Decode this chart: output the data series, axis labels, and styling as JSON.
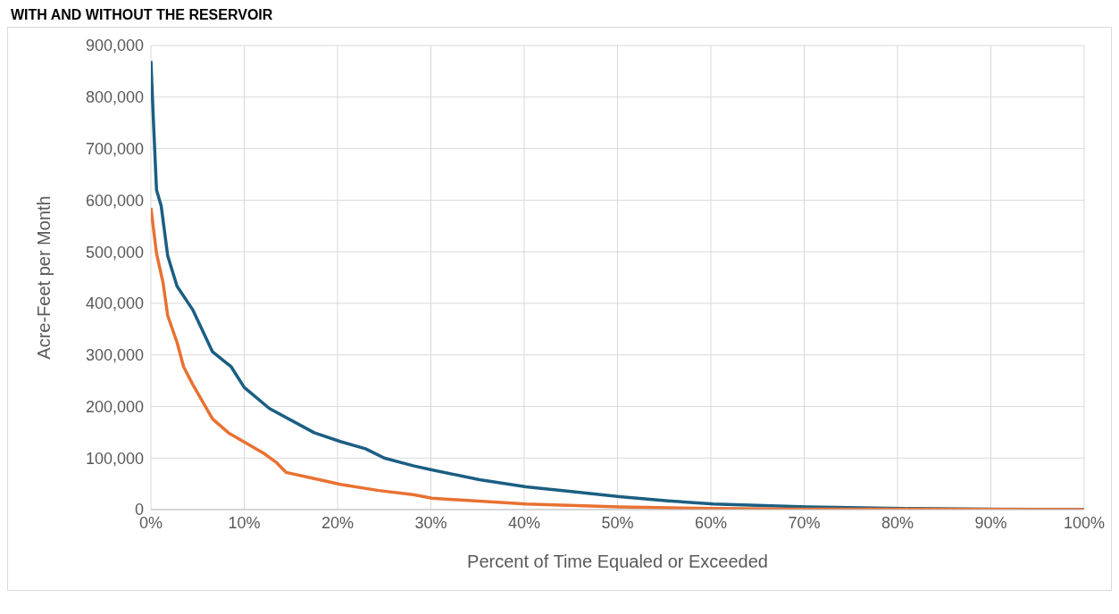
{
  "chart_data": {
    "type": "line",
    "title": "WITH AND WITHOUT THE RESERVOIR",
    "xlabel": "Percent of Time Equaled or Exceeded",
    "ylabel": "Acre-Feet per Month",
    "xlim": [
      0,
      100
    ],
    "xticks": [
      {
        "value": 0,
        "label": "0%"
      },
      {
        "value": 10,
        "label": "10%"
      },
      {
        "value": 20,
        "label": "20%"
      },
      {
        "value": 30,
        "label": "30%"
      },
      {
        "value": 40,
        "label": "40%"
      },
      {
        "value": 50,
        "label": "50%"
      },
      {
        "value": 60,
        "label": "60%"
      },
      {
        "value": 70,
        "label": "70%"
      },
      {
        "value": 80,
        "label": "80%"
      },
      {
        "value": 90,
        "label": "90%"
      },
      {
        "value": 100,
        "label": "100%"
      }
    ],
    "ylim": [
      0,
      900000
    ],
    "yticks": [
      0,
      {
        "value": 100000,
        "label": "100,000"
      },
      {
        "value": 200000,
        "label": "200,000"
      },
      {
        "value": 300000,
        "label": "300,000"
      },
      {
        "value": 400000,
        "label": "400,000"
      },
      {
        "value": 500000,
        "label": "500,000"
      },
      {
        "value": 600000,
        "label": "600,000"
      },
      {
        "value": 700000,
        "label": "700,000"
      },
      {
        "value": 800000,
        "label": "800,000"
      },
      {
        "value": 900000,
        "label": "900,000"
      }
    ],
    "grid": true,
    "marker": "none",
    "line_style": "solid",
    "series": [
      {
        "color": "#1b5e82",
        "x": [
          0,
          0.3,
          0.6,
          1.1,
          1.8,
          2.8,
          4.5,
          6.6,
          8.6,
          10,
          12.7,
          17.5,
          20.3,
          23,
          25,
          28.1,
          30.1,
          35.2,
          40.2,
          45.5,
          50.2,
          55.4,
          60.3,
          70.3,
          80.6,
          90,
          100
        ],
        "values": [
          870000,
          740000,
          620000,
          589000,
          492000,
          433000,
          387000,
          306000,
          277000,
          237000,
          196000,
          149000,
          132000,
          118000,
          100000,
          85000,
          77000,
          58000,
          44000,
          34000,
          25000,
          17000,
          11000,
          5000,
          2000,
          1000,
          0
        ]
      },
      {
        "color": "#e97132",
        "x": [
          0,
          0.6,
          1.3,
          1.8,
          2.8,
          3.5,
          4.5,
          6.6,
          8.3,
          10.2,
          12.1,
          13.4,
          14.5,
          17.5,
          20.3,
          24.4,
          28.1,
          30.1,
          40.2,
          50.2,
          60,
          70,
          80,
          100
        ],
        "values": [
          585000,
          497000,
          440000,
          376000,
          324000,
          277000,
          242000,
          176000,
          149000,
          129000,
          109000,
          92000,
          72000,
          60000,
          49000,
          37000,
          29000,
          22000,
          11000,
          5000,
          2000,
          1000,
          1000,
          0
        ]
      }
    ]
  }
}
